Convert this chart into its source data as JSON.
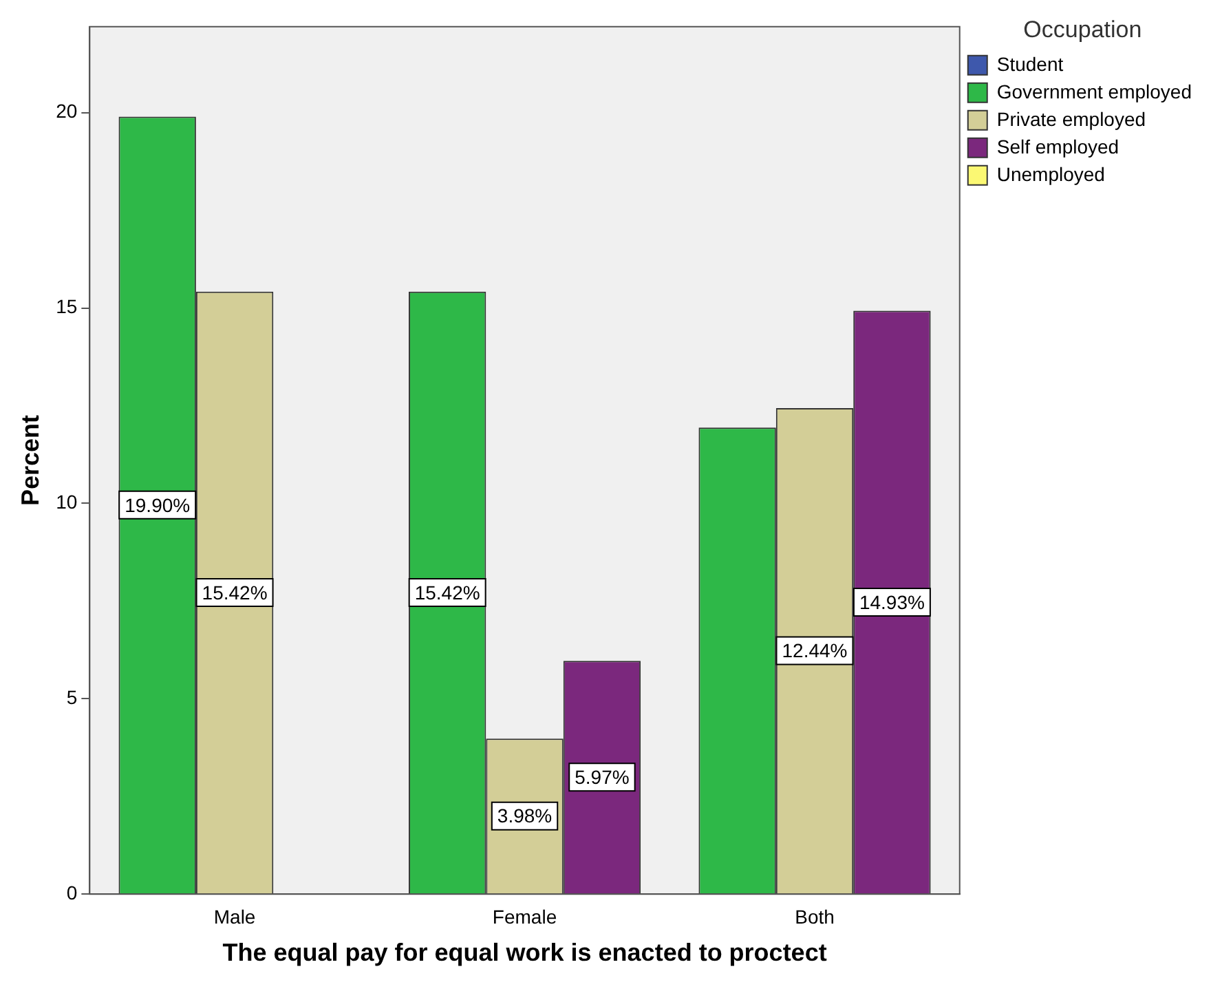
{
  "chart_data": {
    "type": "bar",
    "xlabel": "The equal pay for equal work is enacted to proctect",
    "ylabel": "Percent",
    "legend_title": "Occupation",
    "categories": [
      "Male",
      "Female",
      "Both"
    ],
    "series": [
      {
        "name": "Student",
        "color": "#3e58ac",
        "values": [
          null,
          null,
          null
        ]
      },
      {
        "name": "Government employed",
        "color": "#2eb848",
        "values": [
          19.9,
          15.42,
          11.94
        ],
        "value_labels": [
          "19.90%",
          "15.42%",
          null
        ]
      },
      {
        "name": "Private employed",
        "color": "#d3ce97",
        "values": [
          15.42,
          3.98,
          12.44
        ],
        "value_labels": [
          "15.42%",
          "3.98%",
          "12.44%"
        ]
      },
      {
        "name": "Self employed",
        "color": "#7b287d",
        "values": [
          0,
          5.97,
          14.93
        ],
        "value_labels": [
          null,
          "5.97%",
          "14.93%"
        ]
      },
      {
        "name": "Unemployed",
        "color": "#fbf873",
        "values": [
          null,
          null,
          null
        ]
      }
    ],
    "ylim": [
      0,
      22.2
    ],
    "yticks": [
      0,
      5,
      10,
      15,
      20
    ],
    "grid": false,
    "legend": "top right"
  }
}
